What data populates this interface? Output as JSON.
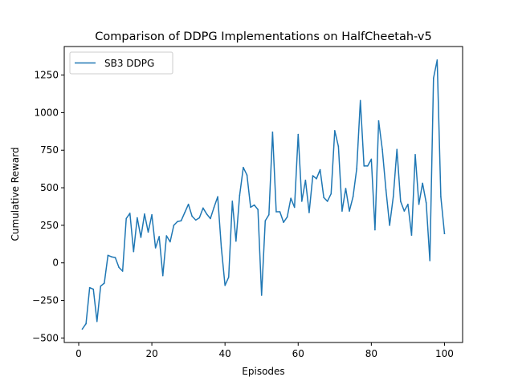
{
  "chart_data": {
    "type": "line",
    "title": "Comparison of DDPG Implementations on HalfCheetah-v5",
    "xlabel": "Episodes",
    "ylabel": "Cumulative Reward",
    "xlim": [
      -3.95,
      104.95
    ],
    "ylim": [
      -530,
      1440
    ],
    "xticks": [
      0,
      20,
      40,
      60,
      80,
      100
    ],
    "yticks": [
      -500,
      -250,
      0,
      250,
      500,
      750,
      1000,
      1250
    ],
    "grid": false,
    "legend_position": "top-left",
    "colors": {
      "series": "#1f77b4",
      "axes": "#000000",
      "background": "#ffffff"
    },
    "series": [
      {
        "name": "SB3 DDPG",
        "x": [
          1,
          2,
          3,
          4,
          5,
          6,
          7,
          8,
          9,
          10,
          11,
          12,
          13,
          14,
          15,
          16,
          17,
          18,
          19,
          20,
          21,
          22,
          23,
          24,
          25,
          26,
          27,
          28,
          29,
          30,
          31,
          32,
          33,
          34,
          35,
          36,
          37,
          38,
          39,
          40,
          41,
          42,
          43,
          44,
          45,
          46,
          47,
          48,
          49,
          50,
          51,
          52,
          53,
          54,
          55,
          56,
          57,
          58,
          59,
          60,
          61,
          62,
          63,
          64,
          65,
          66,
          67,
          68,
          69,
          70,
          71,
          72,
          73,
          74,
          75,
          76,
          77,
          78,
          79,
          80,
          81,
          82,
          83,
          84,
          85,
          86,
          87,
          88,
          89,
          90,
          91,
          92,
          93,
          94,
          95,
          96,
          97,
          98,
          99,
          100
        ],
        "values": [
          -440,
          -405,
          -165,
          -175,
          -390,
          -155,
          -135,
          50,
          40,
          35,
          -30,
          -55,
          295,
          330,
          75,
          300,
          170,
          325,
          205,
          320,
          100,
          175,
          -85,
          180,
          140,
          250,
          275,
          280,
          335,
          390,
          310,
          285,
          300,
          365,
          325,
          295,
          370,
          440,
          100,
          -150,
          -95,
          410,
          145,
          450,
          635,
          585,
          370,
          385,
          355,
          -215,
          280,
          320,
          870,
          340,
          340,
          270,
          305,
          430,
          370,
          855,
          410,
          550,
          335,
          580,
          560,
          620,
          435,
          410,
          460,
          880,
          775,
          345,
          495,
          345,
          440,
          625,
          1080,
          645,
          645,
          690,
          220,
          945,
          755,
          485,
          250,
          440,
          755,
          410,
          345,
          390,
          185,
          720,
          390,
          530,
          400,
          15,
          1230,
          1350,
          440,
          195
        ]
      }
    ]
  }
}
